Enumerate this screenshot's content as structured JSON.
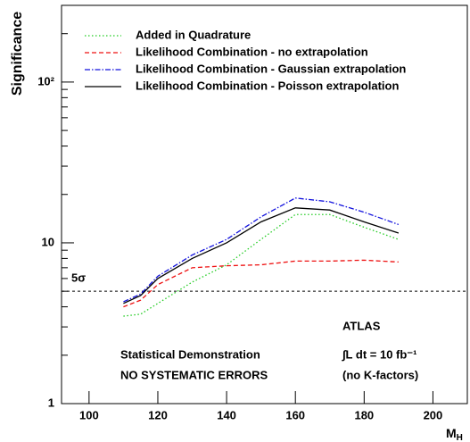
{
  "chart_data": {
    "type": "line",
    "y_log": true,
    "ylabel": "Significance",
    "xlabel": {
      "main": "M",
      "sub": "H"
    },
    "xlim": [
      92,
      210
    ],
    "ylim": [
      1,
      300
    ],
    "xticks": [
      100,
      120,
      140,
      160,
      180,
      200
    ],
    "yticks": [
      1,
      10,
      {
        "value": 100,
        "label": "10²"
      }
    ],
    "x": [
      110,
      115,
      120,
      130,
      140,
      150,
      160,
      170,
      180,
      190
    ],
    "series": [
      {
        "name": "Added in Quadrature",
        "color": "#22cc22",
        "dash": "dotted",
        "values": [
          3.5,
          3.6,
          4.2,
          5.7,
          7.3,
          10.5,
          15,
          15,
          12.5,
          10.5
        ]
      },
      {
        "name": "Likelihood Combination - no extrapolation",
        "color": "#ee1111",
        "dash": "dashed",
        "values": [
          4.0,
          4.4,
          5.5,
          7.0,
          7.2,
          7.3,
          7.7,
          7.7,
          7.8,
          7.6
        ]
      },
      {
        "name": "Likelihood Combination - Gaussian extrapolation",
        "color": "#1111dd",
        "dash": "dashdot",
        "values": [
          4.3,
          4.8,
          6.2,
          8.4,
          10.5,
          14.5,
          19,
          18,
          15.5,
          13
        ]
      },
      {
        "name": "Likelihood Combination - Poisson extrapolation",
        "color": "#000000",
        "dash": "solid",
        "values": [
          4.2,
          4.7,
          6.0,
          8.0,
          10.0,
          13.5,
          16.5,
          16,
          13.5,
          11.5
        ]
      }
    ],
    "reference_line": {
      "value": 5,
      "label": "5σ"
    },
    "annotations": [
      "ATLAS",
      "Statistical Demonstration",
      "NO SYSTEMATIC ERRORS",
      "∫L dt = 10 fb⁻¹",
      "(no K-factors)"
    ]
  }
}
